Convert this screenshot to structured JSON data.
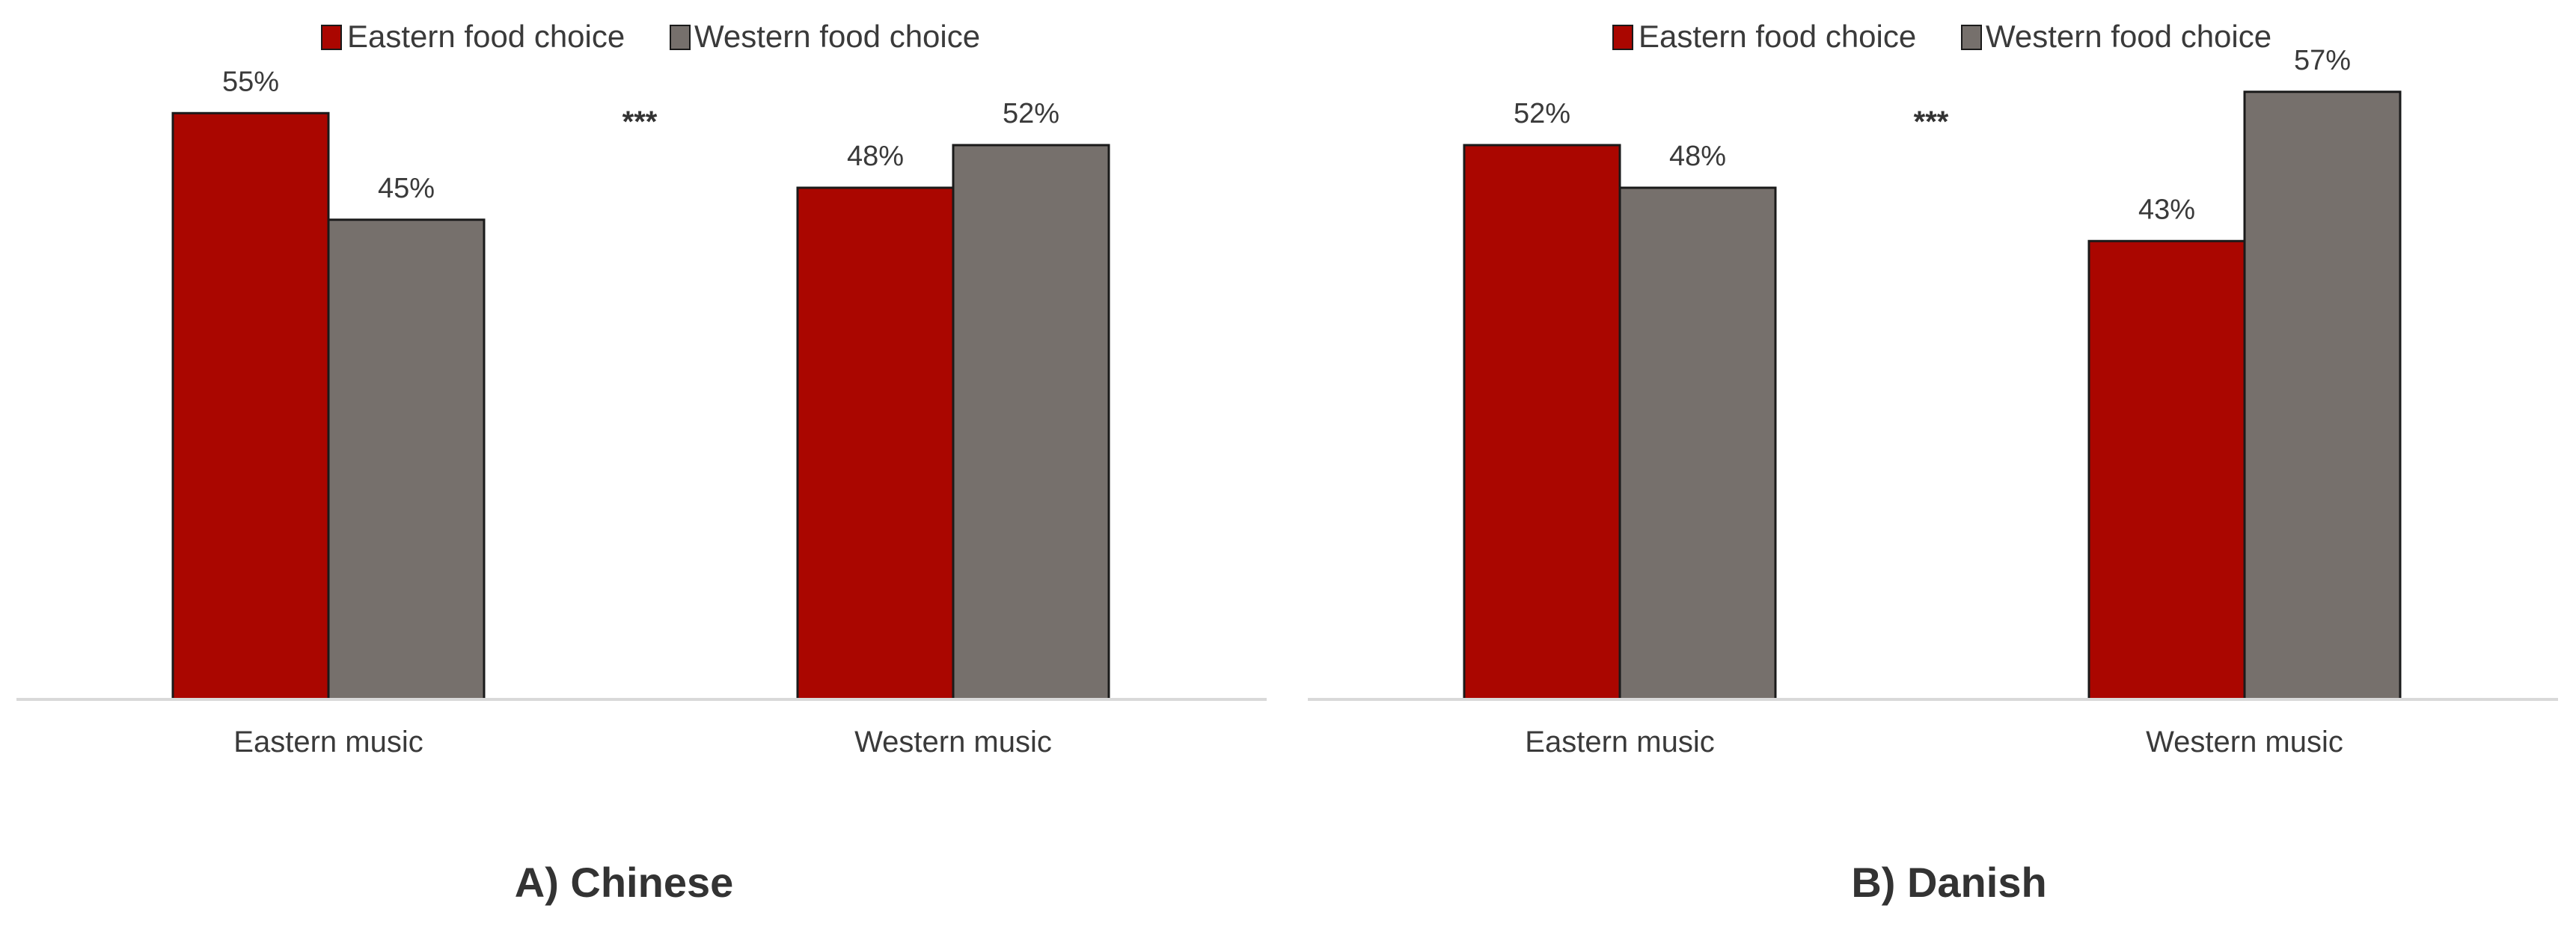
{
  "chart_data": [
    {
      "type": "bar",
      "title": "A) Chinese",
      "categories": [
        "Eastern music",
        "Western music"
      ],
      "series": [
        {
          "name": "Eastern food choice",
          "values": [
            55,
            48
          ],
          "labels": [
            "55%",
            "48%"
          ],
          "color": "#AA0600"
        },
        {
          "name": "Western food choice",
          "values": [
            45,
            52
          ],
          "labels": [
            "45%",
            "52%"
          ],
          "color": "#76706C"
        }
      ],
      "annotation": "***",
      "ylim": [
        0,
        60
      ],
      "grid": false,
      "legend_position": "top-center",
      "xlabel": "",
      "ylabel": ""
    },
    {
      "type": "bar",
      "title": "B) Danish",
      "categories": [
        "Eastern music",
        "Western music"
      ],
      "series": [
        {
          "name": "Eastern food choice",
          "values": [
            52,
            43
          ],
          "labels": [
            "52%",
            "43%"
          ],
          "color": "#AA0600"
        },
        {
          "name": "Western food choice",
          "values": [
            48,
            57
          ],
          "labels": [
            "48%",
            "57%"
          ],
          "color": "#76706C"
        }
      ],
      "annotation": "***",
      "ylim": [
        0,
        60
      ],
      "grid": false,
      "legend_position": "top-center",
      "xlabel": "",
      "ylabel": ""
    }
  ]
}
